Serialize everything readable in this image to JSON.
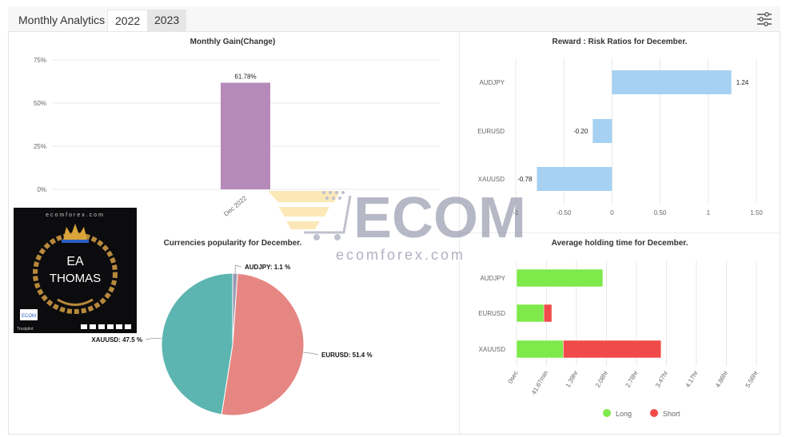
{
  "header": {
    "title": "Monthly Analytics",
    "tabs": [
      {
        "label": "2022"
      },
      {
        "label": "2023"
      }
    ],
    "settings_icon": "sliders-icon"
  },
  "colors": {
    "gain_bar": "#b58ab9",
    "rr_bar": "#a6d1f2",
    "pie_audjpy": "#9a9ab4",
    "pie_eurusd": "#e68683",
    "pie_xauusd": "#5cb5b0",
    "long": "#7ee94a",
    "short": "#f04a4a"
  },
  "promo": {
    "site": "ecomforex.com",
    "title_line1": "EA",
    "title_line2": "THOMAS",
    "brand": "ECOM",
    "rating": "Trustpilot"
  },
  "watermark": {
    "text": "ecomforex.com",
    "logo": "ECOM"
  },
  "chart_data": [
    {
      "type": "bar",
      "title": "Monthly Gain(Change)",
      "categories": [
        "Dec 2022"
      ],
      "values": [
        61.78
      ],
      "data_labels": [
        "61.78%"
      ],
      "yticks": [
        "0%",
        "25%",
        "50%",
        "75%"
      ],
      "ylim": [
        0,
        75
      ],
      "grid": true
    },
    {
      "type": "bar",
      "orientation": "horizontal",
      "title": "Reward : Risk Ratios for December.",
      "categories": [
        "AUDJPY",
        "EURUSD",
        "XAUUSD"
      ],
      "values": [
        1.24,
        -0.2,
        -0.78
      ],
      "xticks": [
        "-1",
        "-0.50",
        "0",
        "0.50",
        "1",
        "1.50"
      ],
      "xlim": [
        -1,
        1.5
      ],
      "grid": true
    },
    {
      "type": "pie",
      "title": "Currencies popularity for December.",
      "labels": [
        "AUDJPY",
        "EURUSD",
        "XAUUSD"
      ],
      "values": [
        1.1,
        51.4,
        47.5
      ],
      "data_labels": [
        "AUDJPY: 1.1 %",
        "EURUSD: 51.4 %",
        "XAUUSD: 47.5 %"
      ]
    },
    {
      "type": "bar",
      "orientation": "horizontal",
      "stacked": true,
      "title": "Average holding time for December.",
      "categories": [
        "AUDJPY",
        "EURUSD",
        "XAUUSD"
      ],
      "series": [
        {
          "name": "Long",
          "values": [
            120,
            38,
            65
          ]
        },
        {
          "name": "Short",
          "values": [
            0,
            11,
            136
          ]
        }
      ],
      "x_unit": "minutes",
      "xticks": [
        "0sec",
        "41.67min",
        "1.39hr",
        "2.08hr",
        "2.78hr",
        "3.47hr",
        "4.17hr",
        "4.86hr",
        "5.56hr"
      ],
      "xlim": [
        0,
        333.6
      ],
      "legend": "bottom",
      "grid": true
    }
  ]
}
